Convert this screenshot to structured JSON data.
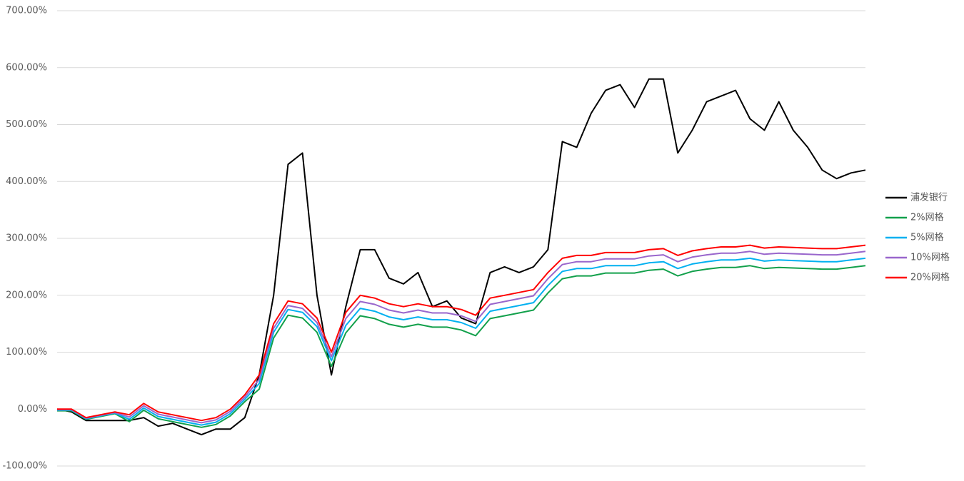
{
  "chart_data": {
    "type": "line",
    "ylim": [
      -100,
      700
    ],
    "yticks": [
      {
        "value": -100,
        "label": "-100.00%"
      },
      {
        "value": 0,
        "label": "0.00%"
      },
      {
        "value": 100,
        "label": "100.00%"
      },
      {
        "value": 200,
        "label": "200.00%"
      },
      {
        "value": 300,
        "label": "300.00%"
      },
      {
        "value": 400,
        "label": "400.00%"
      },
      {
        "value": 500,
        "label": "500.00%"
      },
      {
        "value": 600,
        "label": "600.00%"
      },
      {
        "value": 700,
        "label": "700.00%"
      }
    ],
    "grid": true,
    "legend": "right",
    "series": [
      {
        "name": "浦发银行",
        "color": "#000000",
        "values": [
          0,
          -5,
          -20,
          -20,
          -20,
          -20,
          -15,
          -30,
          -25,
          -35,
          -45,
          -35,
          -35,
          -15,
          60,
          200,
          430,
          450,
          200,
          60,
          180,
          280,
          280,
          230,
          220,
          240,
          180,
          190,
          160,
          150,
          240,
          250,
          240,
          250,
          280,
          470,
          460,
          520,
          560,
          570,
          530,
          580,
          580,
          450,
          490,
          540,
          550,
          560,
          510,
          490,
          540,
          490,
          460,
          420,
          405,
          415,
          420
        ]
      },
      {
        "name": "2%网格",
        "color": "#12a04b",
        "values": [
          -3,
          -3,
          -18,
          -13,
          -8,
          -22,
          -2,
          -17,
          -22,
          -27,
          -32,
          -27,
          -12,
          13,
          35,
          125,
          165,
          160,
          135,
          75,
          134,
          164,
          159,
          149,
          144,
          149,
          144,
          144,
          139,
          129,
          159,
          164,
          169,
          174,
          204,
          229,
          234,
          234,
          239,
          239,
          239,
          244,
          246,
          234,
          242,
          246,
          249,
          249,
          252,
          247,
          249,
          248,
          247,
          246,
          246,
          249,
          252
        ]
      },
      {
        "name": "5%网格",
        "color": "#00b0f0",
        "values": [
          -2,
          -2,
          -17,
          -12,
          -7,
          -18,
          2,
          -13,
          -18,
          -23,
          -28,
          -23,
          -8,
          17,
          45,
          135,
          175,
          170,
          145,
          85,
          147,
          177,
          172,
          162,
          157,
          162,
          157,
          157,
          152,
          142,
          172,
          177,
          182,
          187,
          217,
          242,
          247,
          247,
          252,
          252,
          252,
          257,
          259,
          247,
          255,
          259,
          262,
          262,
          265,
          260,
          262,
          261,
          260,
          259,
          259,
          262,
          265
        ]
      },
      {
        "name": "10%网格",
        "color": "#9966cc",
        "values": [
          -1,
          -1,
          -16,
          -11,
          -6,
          -14,
          6,
          -9,
          -14,
          -19,
          -24,
          -19,
          -4,
          21,
          52,
          142,
          182,
          177,
          152,
          92,
          159,
          189,
          184,
          174,
          169,
          174,
          169,
          169,
          164,
          154,
          184,
          189,
          194,
          199,
          229,
          254,
          259,
          259,
          264,
          264,
          264,
          269,
          271,
          259,
          267,
          271,
          274,
          274,
          277,
          272,
          274,
          273,
          272,
          271,
          271,
          274,
          277
        ]
      },
      {
        "name": "20%网格",
        "color": "#ff0000",
        "values": [
          0,
          0,
          -15,
          -10,
          -5,
          -10,
          10,
          -5,
          -10,
          -15,
          -20,
          -15,
          0,
          25,
          60,
          150,
          190,
          185,
          160,
          100,
          170,
          200,
          195,
          185,
          180,
          185,
          180,
          180,
          175,
          165,
          195,
          200,
          205,
          210,
          240,
          265,
          270,
          270,
          275,
          275,
          275,
          280,
          282,
          270,
          278,
          282,
          285,
          285,
          288,
          283,
          285,
          284,
          283,
          282,
          282,
          285,
          288
        ]
      }
    ]
  }
}
